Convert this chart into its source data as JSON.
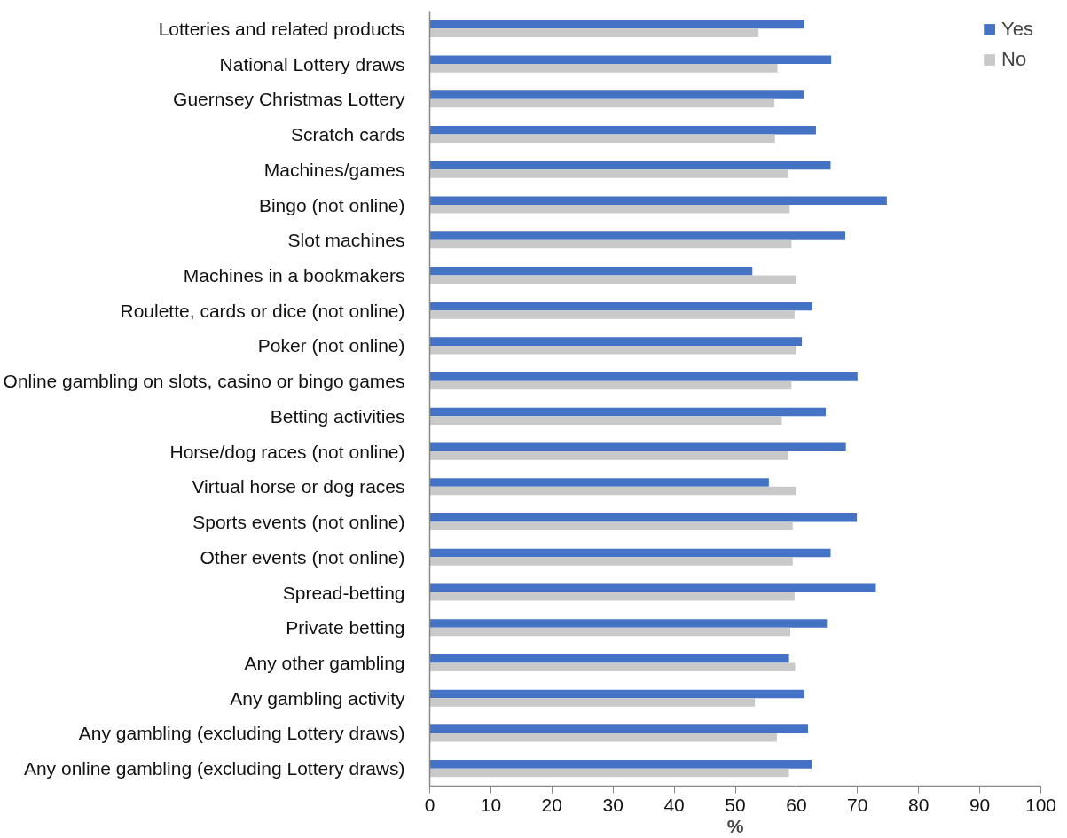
{
  "chart_data": {
    "type": "bar",
    "orientation": "horizontal",
    "xlabel": "%",
    "categories": [
      "Lotteries and related products",
      "National Lottery draws",
      "Guernsey Christmas Lottery",
      "Scratch cards",
      "Machines/games",
      "Bingo (not online)",
      "Slot machines",
      "Machines in a bookmakers",
      "Roulette, cards or dice (not online)",
      "Poker (not online)",
      "Online gambling on slots, casino or bingo games",
      "Betting activities",
      "Horse/dog races (not online)",
      "Virtual horse or dog races",
      "Sports events (not online)",
      "Other events (not online)",
      "Spread-betting",
      "Private betting",
      "Any other gambling",
      "Any gambling activity",
      "Any gambling (excluding Lottery draws)",
      "Any online gambling (excluding Lottery draws)"
    ],
    "series": [
      {
        "name": "Yes",
        "color": "#4472c4",
        "values": [
          61.3,
          65.7,
          61.2,
          63.2,
          65.6,
          74.8,
          68.0,
          52.8,
          62.6,
          60.9,
          70.0,
          64.8,
          68.1,
          55.5,
          69.9,
          65.6,
          73.0,
          65.0,
          58.8,
          61.3,
          61.9,
          62.5
        ]
      },
      {
        "name": "No",
        "color": "#c9c9c9",
        "values": [
          53.8,
          56.9,
          56.4,
          56.5,
          58.7,
          58.9,
          59.2,
          60.0,
          59.7,
          60.0,
          59.2,
          57.6,
          58.7,
          60.0,
          59.4,
          59.4,
          59.7,
          59.0,
          59.8,
          53.2,
          56.8,
          58.8
        ]
      }
    ],
    "xlim": [
      0,
      100
    ],
    "xticks": [
      0,
      10,
      20,
      30,
      40,
      50,
      60,
      70,
      80,
      90,
      100
    ],
    "grid": false,
    "legend": "top right"
  }
}
